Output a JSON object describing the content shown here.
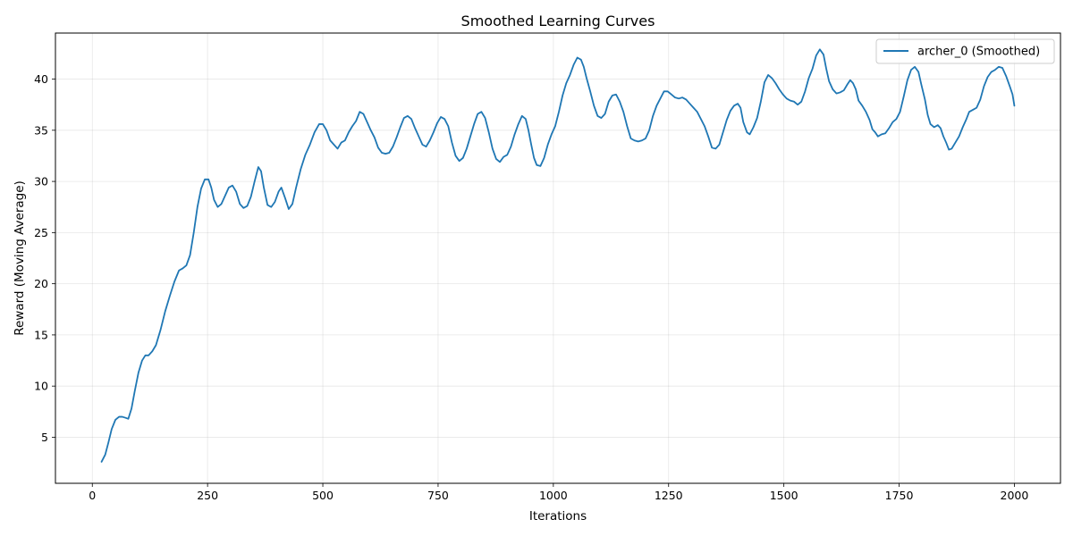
{
  "chart_data": {
    "type": "line",
    "title": "Smoothed Learning Curves",
    "xlabel": "Iterations",
    "ylabel": "Reward (Moving Average)",
    "xlim": [
      -80,
      2100
    ],
    "ylim": [
      0.5,
      44.5
    ],
    "xticks": [
      0,
      250,
      500,
      750,
      1000,
      1250,
      1500,
      1750,
      2000
    ],
    "yticks": [
      5,
      10,
      15,
      20,
      25,
      30,
      35,
      40
    ],
    "grid": true,
    "legend_position": "top-right",
    "series": [
      {
        "name": "archer_0 (Smoothed)",
        "color": "#1f77b4",
        "points": [
          [
            20,
            2.6
          ],
          [
            28,
            3.3
          ],
          [
            35,
            4.5
          ],
          [
            42,
            5.8
          ],
          [
            50,
            6.7
          ],
          [
            58,
            7.0
          ],
          [
            65,
            7.0
          ],
          [
            72,
            6.9
          ],
          [
            78,
            6.8
          ],
          [
            85,
            7.8
          ],
          [
            92,
            9.5
          ],
          [
            100,
            11.3
          ],
          [
            108,
            12.5
          ],
          [
            115,
            13.0
          ],
          [
            122,
            13.0
          ],
          [
            130,
            13.4
          ],
          [
            138,
            14.0
          ],
          [
            148,
            15.5
          ],
          [
            158,
            17.3
          ],
          [
            168,
            18.8
          ],
          [
            178,
            20.2
          ],
          [
            188,
            21.3
          ],
          [
            196,
            21.5
          ],
          [
            204,
            21.8
          ],
          [
            212,
            22.8
          ],
          [
            220,
            25.0
          ],
          [
            228,
            27.5
          ],
          [
            236,
            29.3
          ],
          [
            244,
            30.2
          ],
          [
            252,
            30.2
          ],
          [
            258,
            29.4
          ],
          [
            264,
            28.2
          ],
          [
            272,
            27.5
          ],
          [
            280,
            27.8
          ],
          [
            288,
            28.6
          ],
          [
            296,
            29.4
          ],
          [
            304,
            29.6
          ],
          [
            312,
            29.0
          ],
          [
            320,
            27.8
          ],
          [
            328,
            27.4
          ],
          [
            336,
            27.6
          ],
          [
            344,
            28.5
          ],
          [
            352,
            30.0
          ],
          [
            360,
            31.4
          ],
          [
            366,
            31.0
          ],
          [
            372,
            29.4
          ],
          [
            380,
            27.7
          ],
          [
            388,
            27.5
          ],
          [
            396,
            28.0
          ],
          [
            404,
            29.0
          ],
          [
            410,
            29.4
          ],
          [
            418,
            28.4
          ],
          [
            426,
            27.3
          ],
          [
            434,
            27.8
          ],
          [
            442,
            29.4
          ],
          [
            452,
            31.2
          ],
          [
            462,
            32.6
          ],
          [
            472,
            33.6
          ],
          [
            482,
            34.8
          ],
          [
            492,
            35.6
          ],
          [
            500,
            35.6
          ],
          [
            508,
            35.0
          ],
          [
            516,
            34.0
          ],
          [
            524,
            33.6
          ],
          [
            532,
            33.2
          ],
          [
            540,
            33.8
          ],
          [
            548,
            34.0
          ],
          [
            556,
            34.8
          ],
          [
            564,
            35.4
          ],
          [
            572,
            35.9
          ],
          [
            580,
            36.8
          ],
          [
            588,
            36.6
          ],
          [
            596,
            35.8
          ],
          [
            604,
            35.0
          ],
          [
            612,
            34.3
          ],
          [
            620,
            33.3
          ],
          [
            628,
            32.8
          ],
          [
            636,
            32.7
          ],
          [
            644,
            32.8
          ],
          [
            652,
            33.4
          ],
          [
            660,
            34.3
          ],
          [
            668,
            35.3
          ],
          [
            676,
            36.2
          ],
          [
            684,
            36.4
          ],
          [
            692,
            36.1
          ],
          [
            700,
            35.2
          ],
          [
            708,
            34.4
          ],
          [
            716,
            33.6
          ],
          [
            724,
            33.4
          ],
          [
            732,
            34.0
          ],
          [
            740,
            34.8
          ],
          [
            748,
            35.7
          ],
          [
            756,
            36.3
          ],
          [
            764,
            36.1
          ],
          [
            772,
            35.4
          ],
          [
            780,
            33.8
          ],
          [
            788,
            32.5
          ],
          [
            796,
            32.0
          ],
          [
            804,
            32.3
          ],
          [
            812,
            33.2
          ],
          [
            820,
            34.4
          ],
          [
            828,
            35.6
          ],
          [
            836,
            36.6
          ],
          [
            844,
            36.8
          ],
          [
            852,
            36.2
          ],
          [
            860,
            34.8
          ],
          [
            868,
            33.2
          ],
          [
            876,
            32.2
          ],
          [
            884,
            31.9
          ],
          [
            892,
            32.4
          ],
          [
            900,
            32.6
          ],
          [
            908,
            33.4
          ],
          [
            916,
            34.6
          ],
          [
            924,
            35.6
          ],
          [
            932,
            36.4
          ],
          [
            940,
            36.1
          ],
          [
            946,
            35.0
          ],
          [
            952,
            33.6
          ],
          [
            958,
            32.3
          ],
          [
            964,
            31.6
          ],
          [
            972,
            31.5
          ],
          [
            980,
            32.3
          ],
          [
            988,
            33.6
          ],
          [
            996,
            34.6
          ],
          [
            1004,
            35.4
          ],
          [
            1012,
            36.8
          ],
          [
            1020,
            38.4
          ],
          [
            1028,
            39.6
          ],
          [
            1036,
            40.4
          ],
          [
            1044,
            41.4
          ],
          [
            1052,
            42.1
          ],
          [
            1060,
            41.9
          ],
          [
            1066,
            41.2
          ],
          [
            1072,
            40.1
          ],
          [
            1080,
            38.8
          ],
          [
            1088,
            37.4
          ],
          [
            1096,
            36.4
          ],
          [
            1104,
            36.2
          ],
          [
            1112,
            36.6
          ],
          [
            1120,
            37.8
          ],
          [
            1128,
            38.4
          ],
          [
            1136,
            38.5
          ],
          [
            1144,
            37.8
          ],
          [
            1152,
            36.8
          ],
          [
            1160,
            35.4
          ],
          [
            1168,
            34.2
          ],
          [
            1176,
            34.0
          ],
          [
            1184,
            33.9
          ],
          [
            1192,
            34.0
          ],
          [
            1200,
            34.2
          ],
          [
            1208,
            35.0
          ],
          [
            1216,
            36.4
          ],
          [
            1224,
            37.4
          ],
          [
            1232,
            38.1
          ],
          [
            1240,
            38.8
          ],
          [
            1248,
            38.8
          ],
          [
            1256,
            38.5
          ],
          [
            1264,
            38.2
          ],
          [
            1272,
            38.1
          ],
          [
            1280,
            38.2
          ],
          [
            1288,
            38.0
          ],
          [
            1296,
            37.6
          ],
          [
            1304,
            37.2
          ],
          [
            1312,
            36.8
          ],
          [
            1320,
            36.1
          ],
          [
            1328,
            35.4
          ],
          [
            1336,
            34.4
          ],
          [
            1344,
            33.3
          ],
          [
            1352,
            33.2
          ],
          [
            1360,
            33.6
          ],
          [
            1368,
            34.8
          ],
          [
            1376,
            36.0
          ],
          [
            1384,
            36.9
          ],
          [
            1392,
            37.4
          ],
          [
            1400,
            37.6
          ],
          [
            1406,
            37.2
          ],
          [
            1412,
            35.8
          ],
          [
            1420,
            34.8
          ],
          [
            1426,
            34.6
          ],
          [
            1434,
            35.3
          ],
          [
            1442,
            36.2
          ],
          [
            1450,
            37.8
          ],
          [
            1458,
            39.7
          ],
          [
            1466,
            40.4
          ],
          [
            1474,
            40.1
          ],
          [
            1482,
            39.6
          ],
          [
            1490,
            39.0
          ],
          [
            1498,
            38.5
          ],
          [
            1506,
            38.1
          ],
          [
            1514,
            37.9
          ],
          [
            1522,
            37.8
          ],
          [
            1530,
            37.5
          ],
          [
            1538,
            37.8
          ],
          [
            1546,
            38.8
          ],
          [
            1554,
            40.1
          ],
          [
            1562,
            41.0
          ],
          [
            1570,
            42.3
          ],
          [
            1578,
            42.9
          ],
          [
            1586,
            42.4
          ],
          [
            1592,
            41.0
          ],
          [
            1598,
            39.8
          ],
          [
            1606,
            39.0
          ],
          [
            1614,
            38.6
          ],
          [
            1622,
            38.7
          ],
          [
            1630,
            38.9
          ],
          [
            1638,
            39.5
          ],
          [
            1644,
            39.9
          ],
          [
            1650,
            39.6
          ],
          [
            1656,
            39.0
          ],
          [
            1662,
            37.9
          ],
          [
            1670,
            37.4
          ],
          [
            1678,
            36.8
          ],
          [
            1686,
            36.0
          ],
          [
            1692,
            35.1
          ],
          [
            1698,
            34.8
          ],
          [
            1704,
            34.4
          ],
          [
            1712,
            34.6
          ],
          [
            1720,
            34.7
          ],
          [
            1728,
            35.2
          ],
          [
            1736,
            35.8
          ],
          [
            1744,
            36.1
          ],
          [
            1752,
            36.8
          ],
          [
            1760,
            38.3
          ],
          [
            1768,
            39.9
          ],
          [
            1776,
            40.9
          ],
          [
            1784,
            41.2
          ],
          [
            1792,
            40.7
          ],
          [
            1798,
            39.5
          ],
          [
            1806,
            38.0
          ],
          [
            1812,
            36.5
          ],
          [
            1818,
            35.6
          ],
          [
            1826,
            35.3
          ],
          [
            1834,
            35.5
          ],
          [
            1840,
            35.2
          ],
          [
            1846,
            34.4
          ],
          [
            1852,
            33.8
          ],
          [
            1858,
            33.1
          ],
          [
            1864,
            33.2
          ],
          [
            1872,
            33.8
          ],
          [
            1880,
            34.4
          ],
          [
            1888,
            35.3
          ],
          [
            1896,
            36.1
          ],
          [
            1902,
            36.8
          ],
          [
            1910,
            37.0
          ],
          [
            1918,
            37.2
          ],
          [
            1926,
            38.0
          ],
          [
            1934,
            39.3
          ],
          [
            1942,
            40.2
          ],
          [
            1950,
            40.7
          ],
          [
            1958,
            40.9
          ],
          [
            1966,
            41.2
          ],
          [
            1974,
            41.1
          ],
          [
            1982,
            40.3
          ],
          [
            1990,
            39.3
          ],
          [
            1996,
            38.5
          ],
          [
            2000,
            37.4
          ]
        ]
      }
    ]
  }
}
